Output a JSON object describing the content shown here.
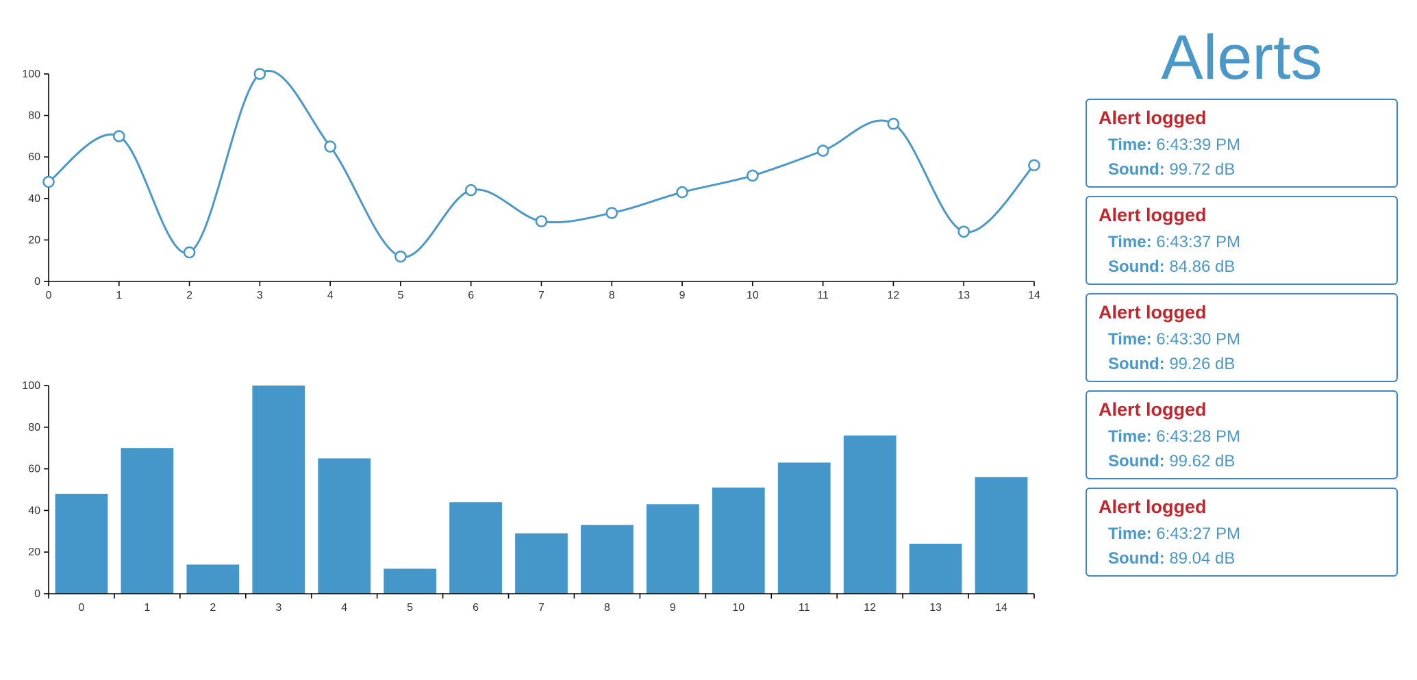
{
  "chart_data": [
    {
      "type": "line",
      "x": [
        0,
        1,
        2,
        3,
        4,
        5,
        6,
        7,
        8,
        9,
        10,
        11,
        12,
        13,
        14
      ],
      "values": [
        48,
        70,
        14,
        100,
        65,
        12,
        44,
        29,
        33,
        43,
        51,
        63,
        76,
        24,
        56
      ],
      "ylim": [
        0,
        100
      ],
      "xlim": [
        0,
        14
      ],
      "yticks": [
        0,
        20,
        40,
        60,
        80,
        100
      ],
      "xticks": [
        0,
        1,
        2,
        3,
        4,
        5,
        6,
        7,
        8,
        9,
        10,
        11,
        12,
        13,
        14
      ],
      "title": "",
      "xlabel": "",
      "ylabel": "",
      "grid": false,
      "color": "#4a98c9",
      "markers": "hollow-circle",
      "curve": "smooth"
    },
    {
      "type": "bar",
      "categories": [
        "0",
        "1",
        "2",
        "3",
        "4",
        "5",
        "6",
        "7",
        "8",
        "9",
        "10",
        "11",
        "12",
        "13",
        "14"
      ],
      "values": [
        48,
        70,
        14,
        100,
        65,
        12,
        44,
        29,
        33,
        43,
        51,
        63,
        76,
        24,
        56
      ],
      "ylim": [
        0,
        100
      ],
      "yticks": [
        0,
        20,
        40,
        60,
        80,
        100
      ],
      "title": "",
      "xlabel": "",
      "ylabel": "",
      "grid": false,
      "color": "#4697c9"
    }
  ],
  "alerts": {
    "title": "Alerts",
    "items": [
      {
        "heading": "Alert logged",
        "time_label": "Time:",
        "time": "6:43:39 PM",
        "sound_label": "Sound:",
        "sound": "99.72 dB"
      },
      {
        "heading": "Alert logged",
        "time_label": "Time:",
        "time": "6:43:37 PM",
        "sound_label": "Sound:",
        "sound": "84.86 dB"
      },
      {
        "heading": "Alert logged",
        "time_label": "Time:",
        "time": "6:43:30 PM",
        "sound_label": "Sound:",
        "sound": "99.26 dB"
      },
      {
        "heading": "Alert logged",
        "time_label": "Time:",
        "time": "6:43:28 PM",
        "sound_label": "Sound:",
        "sound": "99.62 dB"
      },
      {
        "heading": "Alert logged",
        "time_label": "Time:",
        "time": "6:43:27 PM",
        "sound_label": "Sound:",
        "sound": "89.04 dB"
      }
    ],
    "colors": {
      "accent": "#4a98c9",
      "heading": "#c0272d",
      "border": "#3f86c6"
    }
  }
}
